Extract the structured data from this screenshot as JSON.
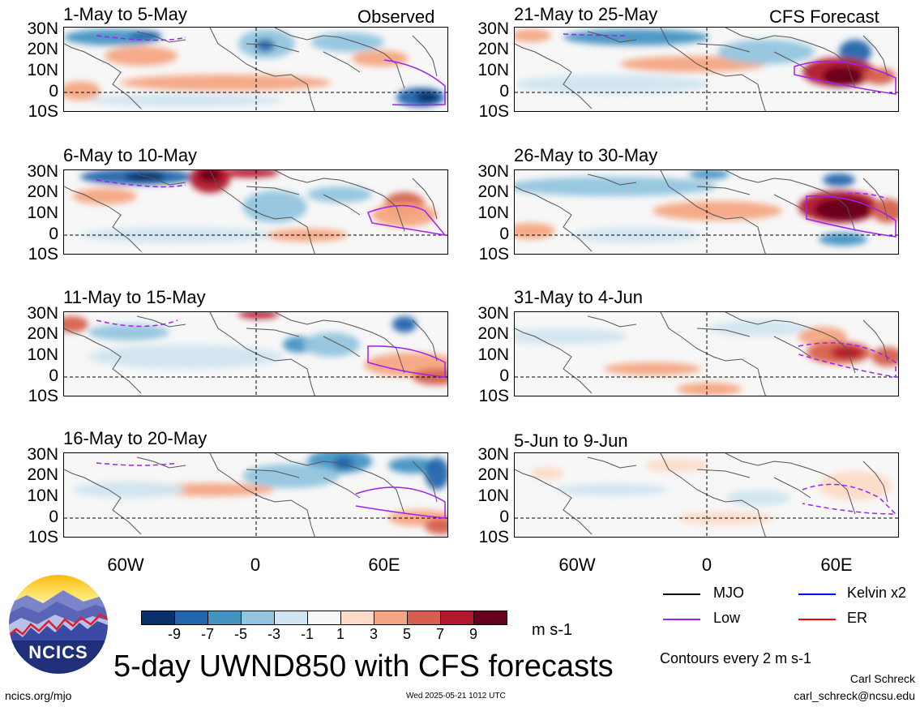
{
  "panels": [
    {
      "id": "p1",
      "title": "1-May to 5-May",
      "label": "Observed"
    },
    {
      "id": "p2",
      "title": "6-May to 10-May",
      "label": ""
    },
    {
      "id": "p3",
      "title": "11-May to 15-May",
      "label": ""
    },
    {
      "id": "p4",
      "title": "16-May to 20-May",
      "label": ""
    },
    {
      "id": "p5",
      "title": "21-May to 25-May",
      "label": "CFS Forecast"
    },
    {
      "id": "p6",
      "title": "26-May to 30-May",
      "label": ""
    },
    {
      "id": "p7",
      "title": "31-May to 4-Jun",
      "label": ""
    },
    {
      "id": "p8",
      "title": "5-Jun to 9-Jun",
      "label": ""
    }
  ],
  "axes": {
    "lat_labels": [
      "30N",
      "20N",
      "10N",
      "0",
      "10S"
    ],
    "lon_labels": [
      "60W",
      "0",
      "60E"
    ]
  },
  "colorbar": {
    "colors": [
      "#08306b",
      "#2166ac",
      "#4393c3",
      "#92c5de",
      "#d1e5f0",
      "#f7f7f7",
      "#fddbc7",
      "#f4a582",
      "#d6604d",
      "#b2182b",
      "#67001f"
    ],
    "labels": [
      "-9",
      "-7",
      "-5",
      "-3",
      "-1",
      "1",
      "3",
      "5",
      "7",
      "9"
    ],
    "units": "m s-1"
  },
  "legend": {
    "items": [
      {
        "label": "MJO",
        "color": "#000000"
      },
      {
        "label": "Kelvin x2",
        "color": "#0000ff"
      },
      {
        "label": "Low",
        "color": "#a020f0"
      },
      {
        "label": "ER",
        "color": "#ff0000"
      }
    ],
    "contours": "Contours every 2 m s-1"
  },
  "footer": {
    "title": "5-day UWND850 with CFS forecasts",
    "site": "ncics.org/mjo",
    "timestamp": "Wed 2025-05-21 1012 UTC",
    "author": "Carl Schreck",
    "email": "carl_schreck@ncsu.edu"
  },
  "logo": {
    "text": "NCICS"
  }
}
